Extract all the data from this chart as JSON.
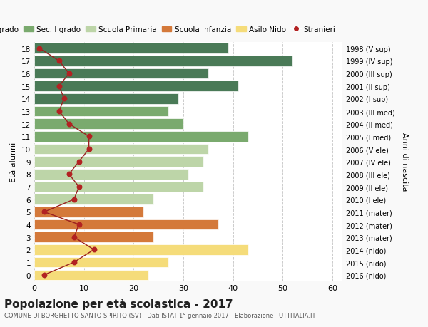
{
  "ages": [
    18,
    17,
    16,
    15,
    14,
    13,
    12,
    11,
    10,
    9,
    8,
    7,
    6,
    5,
    4,
    3,
    2,
    1,
    0
  ],
  "years": [
    "1998 (V sup)",
    "1999 (IV sup)",
    "2000 (III sup)",
    "2001 (II sup)",
    "2002 (I sup)",
    "2003 (III med)",
    "2004 (II med)",
    "2005 (I med)",
    "2006 (V ele)",
    "2007 (IV ele)",
    "2008 (III ele)",
    "2009 (II ele)",
    "2010 (I ele)",
    "2011 (mater)",
    "2012 (mater)",
    "2013 (mater)",
    "2014 (nido)",
    "2015 (nido)",
    "2016 (nido)"
  ],
  "bar_values": [
    39,
    52,
    35,
    41,
    29,
    27,
    30,
    43,
    35,
    34,
    31,
    34,
    24,
    22,
    37,
    24,
    43,
    27,
    23
  ],
  "stranieri": [
    1,
    5,
    7,
    5,
    6,
    5,
    7,
    11,
    11,
    9,
    7,
    9,
    8,
    2,
    9,
    8,
    12,
    8,
    2
  ],
  "bar_colors": [
    "#4a7a57",
    "#4a7a57",
    "#4a7a57",
    "#4a7a57",
    "#4a7a57",
    "#7aaa6e",
    "#7aaa6e",
    "#7aaa6e",
    "#bdd5a8",
    "#bdd5a8",
    "#bdd5a8",
    "#bdd5a8",
    "#bdd5a8",
    "#d4793a",
    "#d4793a",
    "#d4793a",
    "#f5dc7a",
    "#f5dc7a",
    "#f5dc7a"
  ],
  "legend_labels": [
    "Sec. II grado",
    "Sec. I grado",
    "Scuola Primaria",
    "Scuola Infanzia",
    "Asilo Nido",
    "Stranieri"
  ],
  "legend_colors": [
    "#4a7a57",
    "#7aaa6e",
    "#bdd5a8",
    "#d4793a",
    "#f5dc7a",
    "#c0392b"
  ],
  "stranieri_color": "#b22222",
  "stranieri_line_color": "#9b2020",
  "ylabel_left": "Età alunni",
  "ylabel_right": "Anni di nascita",
  "title_main": "Popolazione per età scolastica - 2017",
  "title_sub": "COMUNE DI BORGHETTO SANTO SPIRITO (SV) - Dati ISTAT 1° gennaio 2017 - Elaborazione TUTTITALIA.IT",
  "bg_color": "#f9f9f9",
  "plot_bg_color": "#ffffff",
  "grid_color": "#cccccc"
}
